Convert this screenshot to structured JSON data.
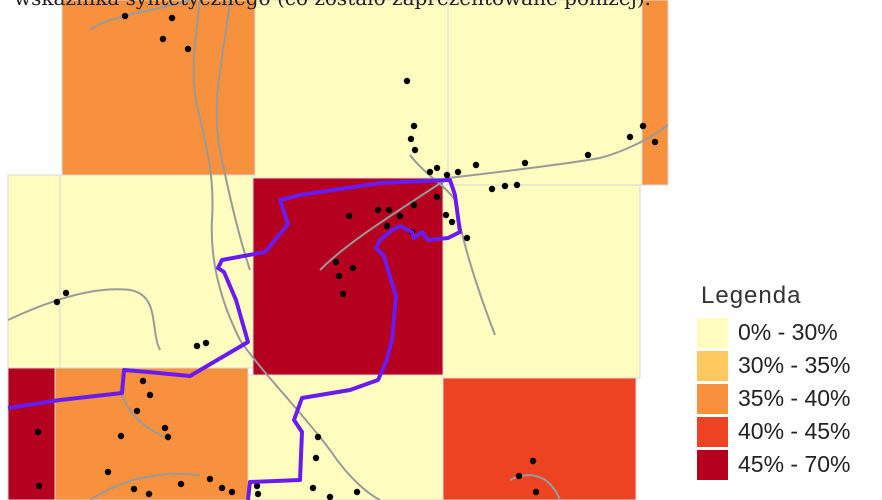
{
  "header": {
    "text": "wskaźnika syntetycznego (co zostało zaprezentowane poniżej)."
  },
  "legend": {
    "title": "Legenda",
    "items": [
      {
        "label": "0% - 30%",
        "color": "#fefcbf"
      },
      {
        "label": "30% - 35%",
        "color": "#fdc85e"
      },
      {
        "label": "35% - 40%",
        "color": "#f7913d"
      },
      {
        "label": "40% - 45%",
        "color": "#ee4322"
      },
      {
        "label": "45% - 70%",
        "color": "#b5001f"
      }
    ]
  }
}
